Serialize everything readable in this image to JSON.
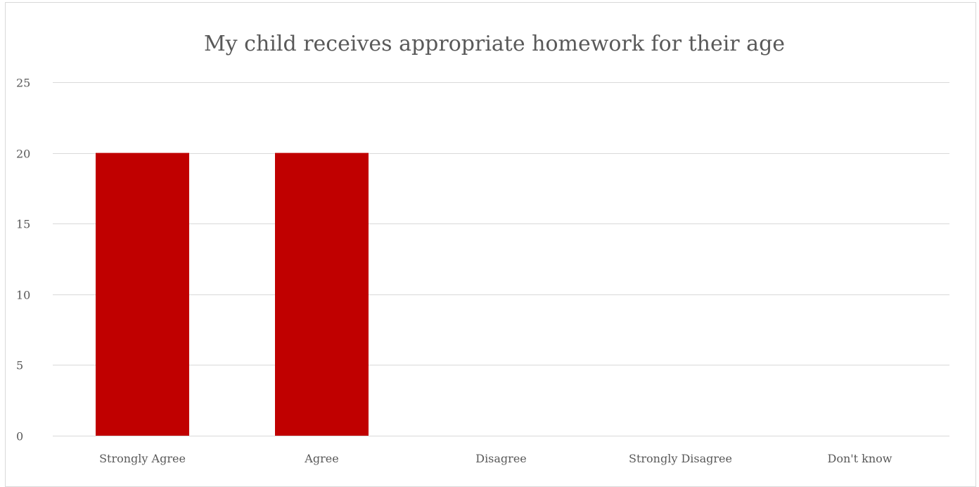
{
  "chart_data": {
    "type": "bar",
    "title": "My child receives appropriate homework for their age",
    "xlabel": "",
    "ylabel": "",
    "categories": [
      "Strongly Agree",
      "Agree",
      "Disagree",
      "Strongly Disagree",
      "Don't know"
    ],
    "values": [
      20,
      20,
      0,
      0,
      0
    ],
    "ylim": [
      0,
      25
    ],
    "yticks": [
      0,
      5,
      10,
      15,
      20,
      25
    ],
    "grid": true,
    "legend": "none",
    "bar_color": "#c00000",
    "gridline_color": "#d9d9d9",
    "text_color": "#595959"
  }
}
